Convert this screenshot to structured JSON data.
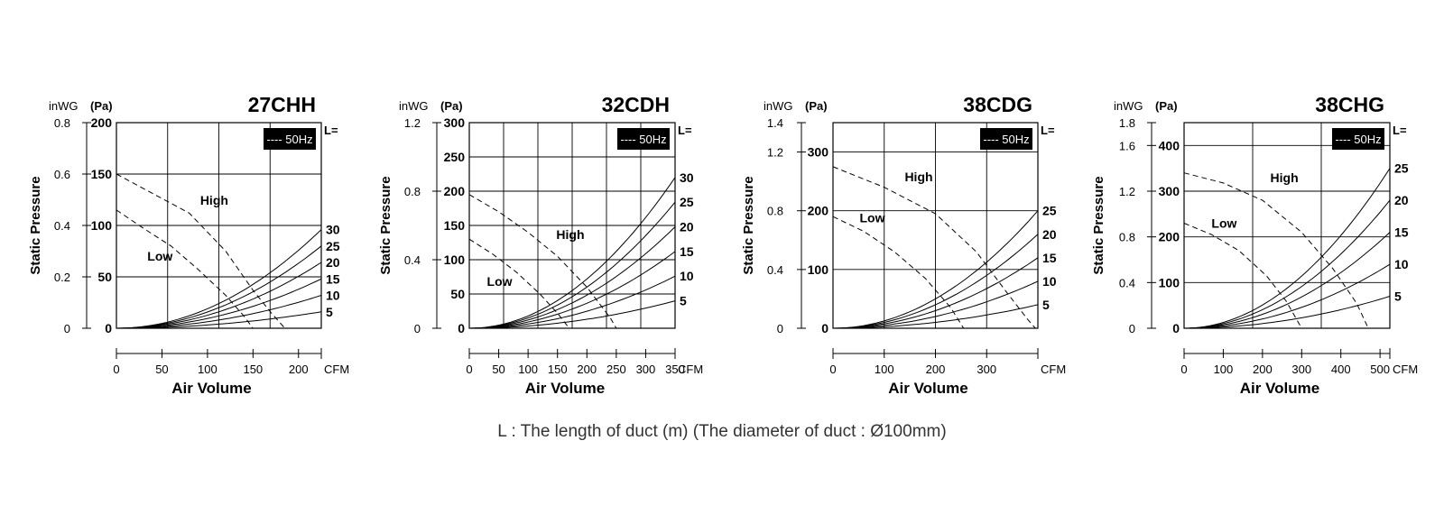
{
  "footnote": "L : The length of duct (m) (The diameter of duct : Ø100mm)",
  "chart_data": [
    {
      "type": "line",
      "title": "27CHH",
      "xlabel": "Air Volume",
      "x_unit": "CFM",
      "ylabel": "Static Pressure",
      "y_unit_left": "inWG",
      "y_unit_right": "(Pa)",
      "badge": "---- 50Hz",
      "l_label": "L=",
      "xlim": [
        0,
        225
      ],
      "ylim_pa": [
        0,
        200
      ],
      "x_ticks": [
        0,
        50,
        100,
        150,
        200
      ],
      "x_grid": [
        0,
        56.25,
        112.5,
        168.75,
        225
      ],
      "pa_ticks": [
        0,
        50,
        100,
        150,
        200
      ],
      "inwg_ticks": [
        {
          "value": "0.8",
          "pa": 200
        },
        {
          "value": "0.6",
          "pa": 150
        },
        {
          "value": "0.4",
          "pa": 100
        },
        {
          "value": "0.2",
          "pa": 50
        },
        {
          "value": "0",
          "pa": 0
        }
      ],
      "fan_curves": [
        {
          "name": "High",
          "label_at": [
            92,
            120
          ],
          "points": [
            [
              0,
              150
            ],
            [
              40,
              131
            ],
            [
              80,
              112
            ],
            [
              120,
              75
            ],
            [
              150,
              37
            ],
            [
              170,
              15
            ],
            [
              185,
              0
            ]
          ]
        },
        {
          "name": "Low",
          "label_at": [
            34,
            66
          ],
          "points": [
            [
              0,
              115
            ],
            [
              30,
              97
            ],
            [
              60,
              80
            ],
            [
              90,
              57
            ],
            [
              120,
              32
            ],
            [
              140,
              12
            ],
            [
              150,
              0
            ]
          ]
        }
      ],
      "duct_curves": [
        {
          "name": "30",
          "y_end": 96
        },
        {
          "name": "25",
          "y_end": 80
        },
        {
          "name": "20",
          "y_end": 64
        },
        {
          "name": "15",
          "y_end": 48
        },
        {
          "name": "10",
          "y_end": 32
        },
        {
          "name": "5",
          "y_end": 16
        }
      ]
    },
    {
      "type": "line",
      "title": "32CDH",
      "xlabel": "Air Volume",
      "x_unit": "CFM",
      "ylabel": "Static Pressure",
      "y_unit_left": "inWG",
      "y_unit_right": "(Pa)",
      "badge": "---- 50Hz",
      "l_label": "L=",
      "xlim": [
        0,
        350
      ],
      "ylim_pa": [
        0,
        300
      ],
      "x_ticks": [
        0,
        50,
        100,
        150,
        200,
        250,
        300,
        350
      ],
      "x_grid": [
        0,
        58.33,
        116.67,
        175,
        233.33,
        291.67,
        350
      ],
      "pa_ticks": [
        0,
        50,
        100,
        150,
        200,
        250,
        300
      ],
      "inwg_ticks": [
        {
          "value": "1.2",
          "pa": 300
        },
        {
          "value": "0.8",
          "pa": 200
        },
        {
          "value": "0.4",
          "pa": 100
        },
        {
          "value": "0",
          "pa": 0
        }
      ],
      "fan_curves": [
        {
          "name": "High",
          "label_at": [
            148,
            130
          ],
          "points": [
            [
              0,
              195
            ],
            [
              50,
              170
            ],
            [
              100,
              140
            ],
            [
              150,
              105
            ],
            [
              200,
              60
            ],
            [
              240,
              15
            ],
            [
              250,
              0
            ]
          ]
        },
        {
          "name": "Low",
          "label_at": [
            30,
            62
          ],
          "points": [
            [
              0,
              130
            ],
            [
              40,
              108
            ],
            [
              80,
              82
            ],
            [
              120,
              50
            ],
            [
              150,
              22
            ],
            [
              170,
              0
            ]
          ]
        }
      ],
      "duct_curves": [
        {
          "name": "30",
          "y_end": 220
        },
        {
          "name": "25",
          "y_end": 184
        },
        {
          "name": "20",
          "y_end": 148
        },
        {
          "name": "15",
          "y_end": 112
        },
        {
          "name": "10",
          "y_end": 76
        },
        {
          "name": "5",
          "y_end": 40
        }
      ]
    },
    {
      "type": "line",
      "title": "38CDG",
      "xlabel": "Air Volume",
      "x_unit": "CFM",
      "ylabel": "Static Pressure",
      "y_unit_left": "inWG",
      "y_unit_right": "(Pa)",
      "badge": "---- 50Hz",
      "l_label": "L=",
      "xlim": [
        0,
        400
      ],
      "ylim_pa": [
        0,
        350
      ],
      "x_ticks": [
        0,
        100,
        200,
        300
      ],
      "x_grid": [
        0,
        100,
        200,
        300,
        400
      ],
      "pa_ticks": [
        0,
        100,
        200,
        300
      ],
      "inwg_ticks": [
        {
          "value": "1.4",
          "pa": 350
        },
        {
          "value": "1.2",
          "pa": 300
        },
        {
          "value": "0.8",
          "pa": 200
        },
        {
          "value": "0.4",
          "pa": 100
        },
        {
          "value": "0",
          "pa": 0
        }
      ],
      "fan_curves": [
        {
          "name": "High",
          "label_at": [
            140,
            250
          ],
          "points": [
            [
              0,
              275
            ],
            [
              100,
              240
            ],
            [
              200,
              195
            ],
            [
              280,
              130
            ],
            [
              340,
              60
            ],
            [
              380,
              15
            ],
            [
              395,
              0
            ]
          ]
        },
        {
          "name": "Low",
          "label_at": [
            52,
            180
          ],
          "points": [
            [
              0,
              190
            ],
            [
              60,
              165
            ],
            [
              120,
              130
            ],
            [
              180,
              85
            ],
            [
              230,
              35
            ],
            [
              255,
              0
            ]
          ]
        }
      ],
      "duct_curves": [
        {
          "name": "25",
          "y_end": 200
        },
        {
          "name": "20",
          "y_end": 160
        },
        {
          "name": "15",
          "y_end": 120
        },
        {
          "name": "10",
          "y_end": 80
        },
        {
          "name": "5",
          "y_end": 40
        }
      ]
    },
    {
      "type": "line",
      "title": "38CHG",
      "xlabel": "Air Volume",
      "x_unit": "CFM",
      "ylabel": "Static Pressure",
      "y_unit_left": "inWG",
      "y_unit_right": "(Pa)",
      "badge": "---- 50Hz",
      "l_label": "L=",
      "xlim": [
        0,
        525
      ],
      "ylim_pa": [
        0,
        450
      ],
      "x_ticks": [
        0,
        100,
        200,
        300,
        400,
        500
      ],
      "x_grid": [
        0,
        175,
        350,
        525
      ],
      "pa_ticks": [
        0,
        100,
        200,
        300,
        400
      ],
      "inwg_ticks": [
        {
          "value": "1.8",
          "pa": 450
        },
        {
          "value": "1.6",
          "pa": 400
        },
        {
          "value": "1.2",
          "pa": 300
        },
        {
          "value": "0.8",
          "pa": 200
        },
        {
          "value": "0.4",
          "pa": 100
        },
        {
          "value": "0",
          "pa": 0
        }
      ],
      "fan_curves": [
        {
          "name": "High",
          "label_at": [
            220,
            320
          ],
          "points": [
            [
              0,
              340
            ],
            [
              100,
              318
            ],
            [
              200,
              280
            ],
            [
              300,
              210
            ],
            [
              380,
              130
            ],
            [
              440,
              55
            ],
            [
              470,
              0
            ]
          ]
        },
        {
          "name": "Low",
          "label_at": [
            70,
            220
          ],
          "points": [
            [
              0,
              230
            ],
            [
              70,
              205
            ],
            [
              140,
              170
            ],
            [
              210,
              115
            ],
            [
              260,
              60
            ],
            [
              300,
              0
            ]
          ]
        }
      ],
      "duct_curves": [
        {
          "name": "25",
          "y_end": 350
        },
        {
          "name": "20",
          "y_end": 280
        },
        {
          "name": "15",
          "y_end": 210
        },
        {
          "name": "10",
          "y_end": 140
        },
        {
          "name": "5",
          "y_end": 70
        }
      ]
    }
  ]
}
